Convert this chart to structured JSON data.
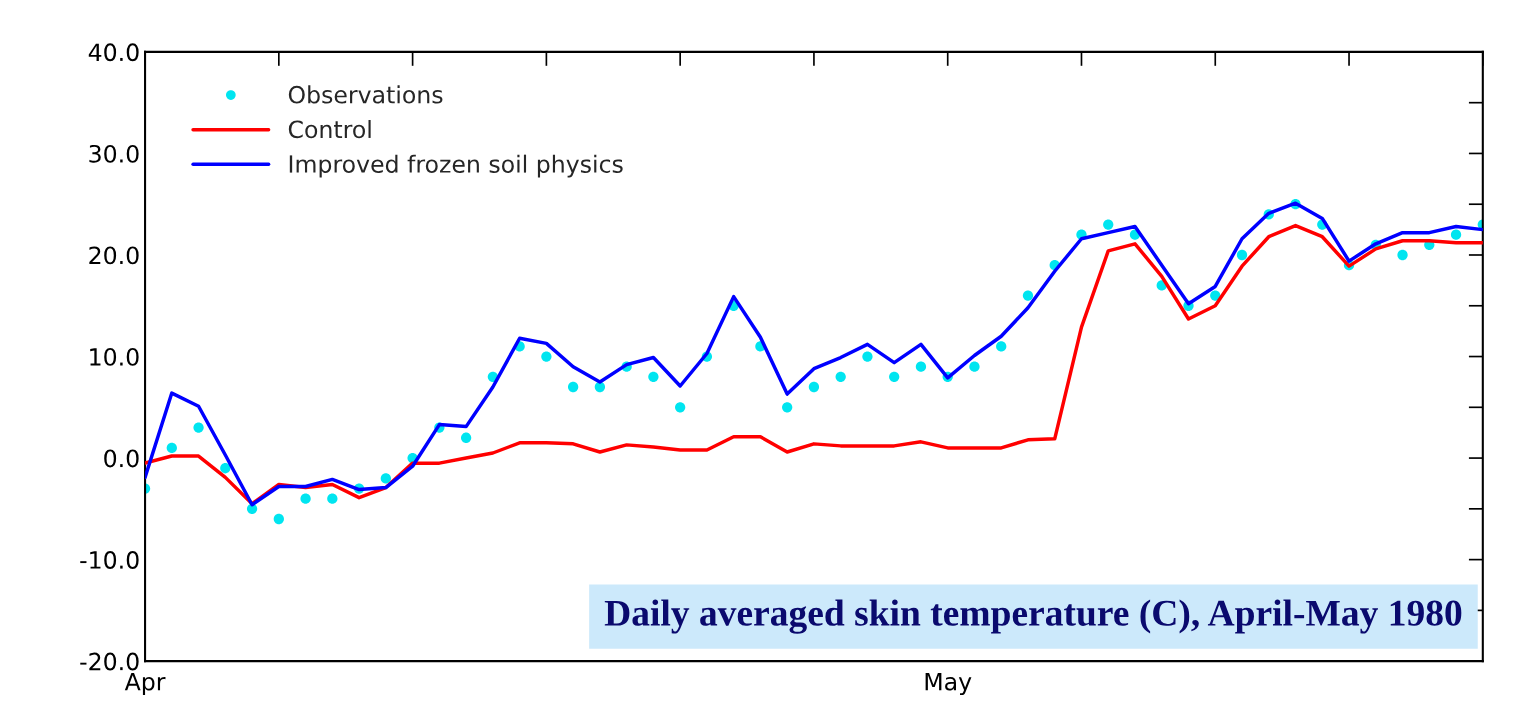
{
  "chart_data": {
    "type": "line",
    "title": "Daily averaged skin temperature (C), April-May 1980",
    "x": [
      "1980-04-01",
      "1980-04-02",
      "1980-04-03",
      "1980-04-04",
      "1980-04-05",
      "1980-04-06",
      "1980-04-07",
      "1980-04-08",
      "1980-04-09",
      "1980-04-10",
      "1980-04-11",
      "1980-04-12",
      "1980-04-13",
      "1980-04-14",
      "1980-04-15",
      "1980-04-16",
      "1980-04-17",
      "1980-04-18",
      "1980-04-19",
      "1980-04-20",
      "1980-04-21",
      "1980-04-22",
      "1980-04-23",
      "1980-04-24",
      "1980-04-25",
      "1980-04-26",
      "1980-04-27",
      "1980-04-28",
      "1980-04-29",
      "1980-04-30",
      "1980-05-01",
      "1980-05-02",
      "1980-05-03",
      "1980-05-04",
      "1980-05-05",
      "1980-05-06",
      "1980-05-07",
      "1980-05-08",
      "1980-05-09",
      "1980-05-10",
      "1980-05-11",
      "1980-05-12",
      "1980-05-13",
      "1980-05-14",
      "1980-05-15",
      "1980-05-16",
      "1980-05-17",
      "1980-05-18",
      "1980-05-19",
      "1980-05-20",
      "1980-05-21"
    ],
    "series": [
      {
        "name": "Observations",
        "type": "scatter",
        "marker": "circle",
        "color": "#00e5f0",
        "values": [
          -3,
          1,
          3,
          -1,
          -5,
          -6,
          -4,
          -4,
          -3,
          -2,
          0,
          3,
          2,
          8,
          11,
          10,
          7,
          7,
          9,
          8,
          5,
          10,
          15,
          11,
          5,
          7,
          8,
          10,
          8,
          9,
          8,
          9,
          11,
          16,
          19,
          22,
          23,
          22,
          17,
          15,
          16,
          20,
          24,
          25,
          23,
          19,
          21,
          20,
          21,
          22,
          23
        ]
      },
      {
        "name": "Control",
        "color": "#ff0000",
        "values": [
          -0.5,
          0.2,
          0.2,
          -1.9,
          -4.5,
          -2.6,
          -2.9,
          -2.6,
          -3.9,
          -2.9,
          -0.5,
          -0.5,
          0,
          0.5,
          1.5,
          1.5,
          1.4,
          0.6,
          1.3,
          1.1,
          0.8,
          0.8,
          2.1,
          2.1,
          0.6,
          1.4,
          1.2,
          1.2,
          1.2,
          1.6,
          1.0,
          1.0,
          1.0,
          1.8,
          1.9,
          12.9,
          20.4,
          21.1,
          17.9,
          13.7,
          15.0,
          18.9,
          21.8,
          22.9,
          21.8,
          18.9,
          20.6,
          21.4,
          21.4,
          21.2,
          21.2
        ]
      },
      {
        "name": "Improved frozen soil physics",
        "color": "#0000ff",
        "values": [
          -1.9,
          6.4,
          5.1,
          0.3,
          -4.6,
          -2.8,
          -2.8,
          -2.1,
          -3.1,
          -2.9,
          -0.8,
          3.3,
          3.1,
          7.0,
          11.8,
          11.3,
          9.0,
          7.5,
          9.2,
          9.9,
          7.1,
          10.3,
          15.9,
          11.9,
          6.3,
          8.8,
          9.9,
          11.2,
          9.4,
          11.2,
          7.9,
          10.1,
          12.0,
          14.8,
          18.4,
          21.6,
          22.2,
          22.8,
          19.0,
          15.2,
          16.9,
          21.6,
          24.1,
          25.1,
          23.6,
          19.4,
          21.1,
          22.2,
          22.2,
          22.8,
          22.5
        ]
      }
    ],
    "xlim": [
      "1980-04-01",
      "1980-05-21"
    ],
    "xticks": [
      {
        "value": "1980-04-01",
        "label": "Apr"
      },
      {
        "value": "1980-04-06",
        "label": null
      },
      {
        "value": "1980-04-11",
        "label": null
      },
      {
        "value": "1980-04-16",
        "label": null
      },
      {
        "value": "1980-04-21",
        "label": null
      },
      {
        "value": "1980-04-26",
        "label": null
      },
      {
        "value": "1980-05-01",
        "label": "May"
      },
      {
        "value": "1980-05-06",
        "label": null
      },
      {
        "value": "1980-05-11",
        "label": null
      },
      {
        "value": "1980-05-16",
        "label": null
      },
      {
        "value": "1980-05-21",
        "label": null
      }
    ],
    "ylim": [
      -20,
      40
    ],
    "yticks": [
      {
        "value": -20,
        "label": "-20.0"
      },
      {
        "value": -15,
        "label": null
      },
      {
        "value": -10,
        "label": "-10.0"
      },
      {
        "value": -5,
        "label": null
      },
      {
        "value": 0,
        "label": "0.0"
      },
      {
        "value": 5,
        "label": null
      },
      {
        "value": 10,
        "label": "10.0"
      },
      {
        "value": 15,
        "label": null
      },
      {
        "value": 20,
        "label": "20.0"
      },
      {
        "value": 25,
        "label": null
      },
      {
        "value": 30,
        "label": "30.0"
      },
      {
        "value": 35,
        "label": null
      },
      {
        "value": 40,
        "label": "40.0"
      }
    ],
    "grid": false,
    "legend": "top left"
  }
}
